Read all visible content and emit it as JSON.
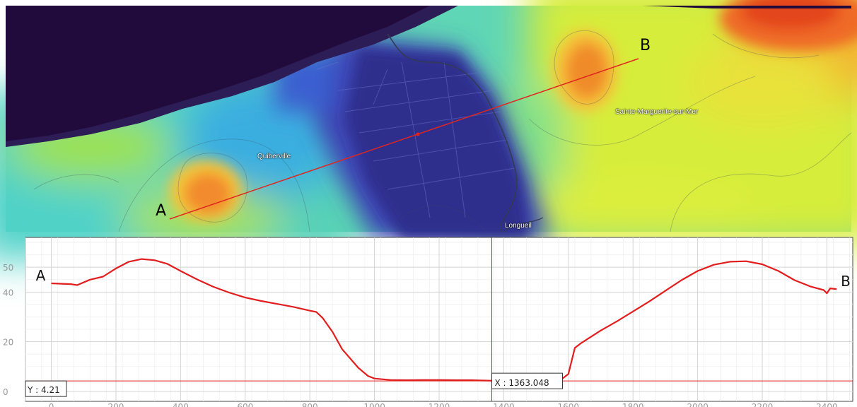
{
  "map": {
    "towns": {
      "quiberville": "Quiberville",
      "sainte_marguerite": "Sainte-Marguerite-sur-Mer",
      "longueil": "Longueil"
    },
    "profile_line": {
      "start_label": "A",
      "end_label": "B",
      "color": "#e0261f"
    },
    "colors": {
      "sea": "#210b3c",
      "low": "#2b2f8c",
      "mid": "#2ec7c9",
      "high": "#e4f03a",
      "peak": "#e84a1c"
    }
  },
  "chart_data": {
    "type": "line",
    "title": "",
    "xlabel": "",
    "ylabel": "",
    "xlim": [
      -80,
      2480
    ],
    "ylim": [
      -4,
      62
    ],
    "xticks": [
      0,
      200,
      400,
      600,
      800,
      1000,
      1200,
      1400,
      1600,
      1800,
      2000,
      2200,
      2400
    ],
    "yticks": [
      0,
      20,
      40,
      50
    ],
    "grid": true,
    "start_label": "A",
    "end_label": "B",
    "series": [
      {
        "color": "#e21d1d",
        "x": [
          0,
          60,
          80,
          120,
          160,
          200,
          240,
          280,
          320,
          360,
          400,
          450,
          500,
          550,
          600,
          650,
          700,
          750,
          800,
          820,
          840,
          870,
          900,
          950,
          980,
          1000,
          1050,
          1100,
          1150,
          1200,
          1250,
          1300,
          1363,
          1400,
          1450,
          1500,
          1550,
          1580,
          1600,
          1620,
          1640,
          1700,
          1750,
          1800,
          1850,
          1900,
          1950,
          2000,
          2050,
          2100,
          2150,
          2200,
          2250,
          2300,
          2350,
          2390,
          2400,
          2410,
          2430
        ],
        "y": [
          43.5,
          43.2,
          42.8,
          45,
          46.2,
          49.5,
          52.2,
          53.3,
          52.8,
          51.3,
          48.5,
          45.2,
          42.2,
          39.8,
          37.8,
          36.4,
          35.2,
          34,
          32.5,
          32,
          29.5,
          24,
          17,
          9.5,
          6.2,
          5.2,
          4.6,
          4.5,
          4.6,
          4.6,
          4.5,
          4.5,
          4.3,
          4.4,
          4.6,
          4.5,
          4.6,
          5,
          7,
          17.5,
          19.5,
          24.5,
          28.2,
          32.2,
          36.2,
          40.5,
          44.8,
          48.5,
          51,
          52.2,
          52.4,
          51.2,
          48.5,
          44.8,
          42.2,
          40.8,
          39.5,
          41.5,
          41.2
        ]
      }
    ],
    "crosshair": {
      "x": 1363.048,
      "y": 4.21,
      "x_label": "X : 1363.048",
      "y_label": "Y : 4.21",
      "color": "#e21d1d"
    }
  }
}
